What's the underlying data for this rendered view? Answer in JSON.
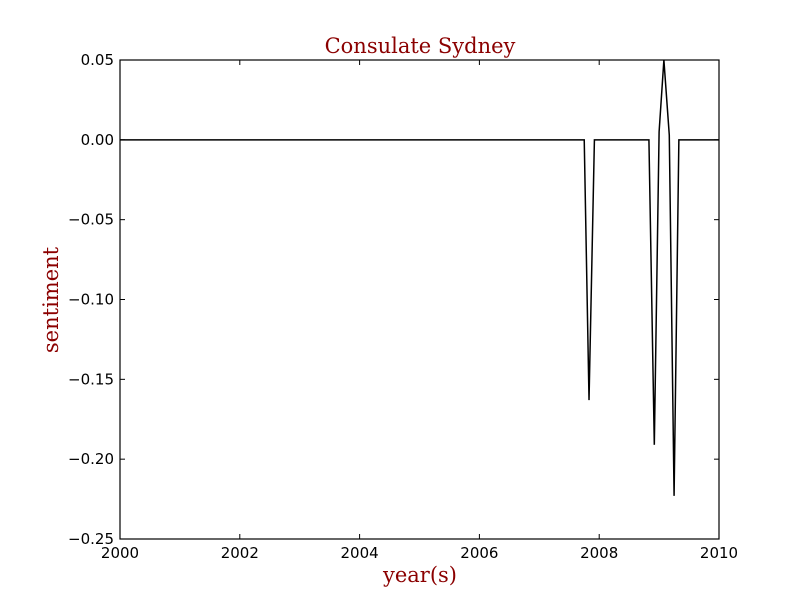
{
  "chart_data": {
    "type": "line",
    "title": "Consulate Sydney",
    "xlabel": "year(s)",
    "ylabel": "sentiment",
    "xlim": [
      2000,
      2010
    ],
    "ylim": [
      -0.25,
      0.05
    ],
    "x_ticks": [
      2000,
      2002,
      2004,
      2006,
      2008,
      2010
    ],
    "x_tick_labels": [
      "2000",
      "2002",
      "2004",
      "2006",
      "2008",
      "2010"
    ],
    "y_ticks": [
      0.05,
      0.0,
      -0.05,
      -0.1,
      -0.15,
      -0.2,
      -0.25
    ],
    "y_tick_labels": [
      "0.05",
      "0.00",
      "−0.05",
      "−0.10",
      "−0.15",
      "−0.20",
      "−0.25"
    ],
    "grid": false,
    "legend": "none",
    "series": [
      {
        "color": "#000000",
        "x": [
          2000.0,
          2007.75,
          2007.83,
          2007.92,
          2008.83,
          2008.92,
          2009.0,
          2009.08,
          2009.17,
          2009.25,
          2009.33,
          2010.0
        ],
        "y": [
          0.0,
          0.0,
          -0.163,
          0.0,
          0.0,
          -0.191,
          0.005,
          0.05,
          0.003,
          -0.223,
          0.0,
          0.0
        ]
      }
    ],
    "title_color": "#8b0000",
    "label_color": "#8b0000"
  }
}
